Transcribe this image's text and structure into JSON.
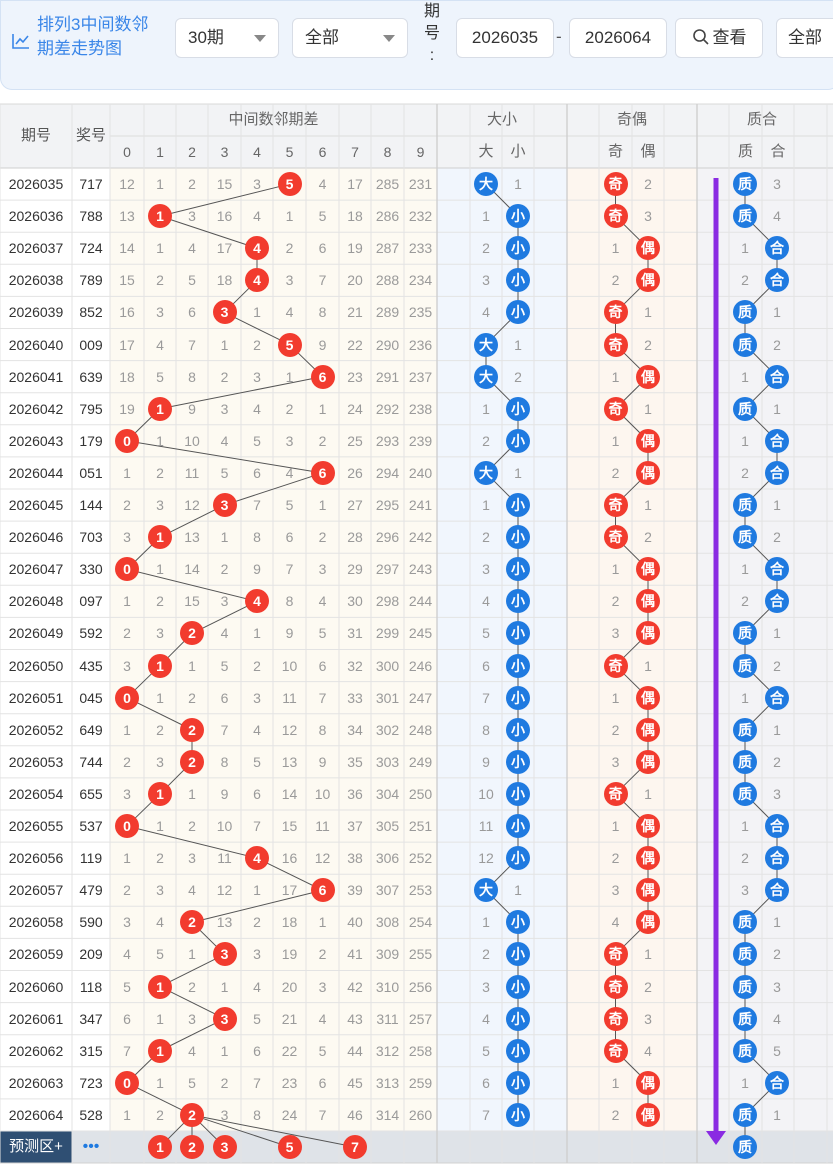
{
  "toolbar": {
    "title_line1": "排列3中间数邻",
    "title_line2": "期差走势图",
    "period_select": "30期",
    "type_select": "全部",
    "period_label": "期号:",
    "start_issue": "2026035",
    "range_dash": "-",
    "end_issue": "2026064",
    "view_button": "查看",
    "all_button": "全部",
    "chart_icon": "line-chart-icon",
    "search_icon": "search-icon"
  },
  "table": {
    "headers": {
      "issue": "期号",
      "number": "奖号",
      "gap_group": "中间数邻期差",
      "gap_cols": [
        "0",
        "1",
        "2",
        "3",
        "4",
        "5",
        "6",
        "7",
        "8",
        "9"
      ],
      "size_group": "大小",
      "size_cols": [
        "大",
        "小"
      ],
      "parity_group": "奇偶",
      "parity_cols": [
        "奇",
        "偶"
      ],
      "prime_group": "质合",
      "prime_cols": [
        "质",
        "合"
      ]
    },
    "rows": [
      {
        "issue": "2026035",
        "number": "717",
        "gap": [
          "12",
          "1",
          "2",
          "15",
          "3",
          "5",
          "4",
          "17",
          "285",
          "231"
        ],
        "hit": 5,
        "size": "大",
        "size_miss": "1",
        "par": "奇",
        "par_miss": "2",
        "prime": "质",
        "prime_miss": "3"
      },
      {
        "issue": "2026036",
        "number": "788",
        "gap": [
          "13",
          "1",
          "3",
          "16",
          "4",
          "1",
          "5",
          "18",
          "286",
          "232"
        ],
        "hit": 1,
        "size": "小",
        "size_miss": "1",
        "par": "奇",
        "par_miss": "3",
        "prime": "质",
        "prime_miss": "4"
      },
      {
        "issue": "2026037",
        "number": "724",
        "gap": [
          "14",
          "1",
          "4",
          "17",
          "4",
          "2",
          "6",
          "19",
          "287",
          "233"
        ],
        "hit": 4,
        "size": "小",
        "size_miss": "2",
        "par": "偶",
        "par_miss": "1",
        "prime": "合",
        "prime_miss": "1"
      },
      {
        "issue": "2026038",
        "number": "789",
        "gap": [
          "15",
          "2",
          "5",
          "18",
          "4",
          "3",
          "7",
          "20",
          "288",
          "234"
        ],
        "hit": 4,
        "size": "小",
        "size_miss": "3",
        "par": "偶",
        "par_miss": "2",
        "prime": "合",
        "prime_miss": "2"
      },
      {
        "issue": "2026039",
        "number": "852",
        "gap": [
          "16",
          "3",
          "6",
          "3",
          "1",
          "4",
          "8",
          "21",
          "289",
          "235"
        ],
        "hit": 3,
        "size": "小",
        "size_miss": "4",
        "par": "奇",
        "par_miss": "1",
        "prime": "质",
        "prime_miss": "1"
      },
      {
        "issue": "2026040",
        "number": "009",
        "gap": [
          "17",
          "4",
          "7",
          "1",
          "2",
          "5",
          "9",
          "22",
          "290",
          "236"
        ],
        "hit": 5,
        "size": "大",
        "size_miss": "1",
        "par": "奇",
        "par_miss": "2",
        "prime": "质",
        "prime_miss": "2"
      },
      {
        "issue": "2026041",
        "number": "639",
        "gap": [
          "18",
          "5",
          "8",
          "2",
          "3",
          "1",
          "6",
          "23",
          "291",
          "237"
        ],
        "hit": 6,
        "size": "大",
        "size_miss": "2",
        "par": "偶",
        "par_miss": "1",
        "prime": "合",
        "prime_miss": "1"
      },
      {
        "issue": "2026042",
        "number": "795",
        "gap": [
          "19",
          "1",
          "9",
          "3",
          "4",
          "2",
          "1",
          "24",
          "292",
          "238"
        ],
        "hit": 1,
        "size": "小",
        "size_miss": "1",
        "par": "奇",
        "par_miss": "1",
        "prime": "质",
        "prime_miss": "1"
      },
      {
        "issue": "2026043",
        "number": "179",
        "gap": [
          "0",
          "1",
          "10",
          "4",
          "5",
          "3",
          "2",
          "25",
          "293",
          "239"
        ],
        "hit": 0,
        "size": "小",
        "size_miss": "2",
        "par": "偶",
        "par_miss": "1",
        "prime": "合",
        "prime_miss": "1"
      },
      {
        "issue": "2026044",
        "number": "051",
        "gap": [
          "1",
          "2",
          "11",
          "5",
          "6",
          "4",
          "6",
          "26",
          "294",
          "240"
        ],
        "hit": 6,
        "size": "大",
        "size_miss": "1",
        "par": "偶",
        "par_miss": "2",
        "prime": "合",
        "prime_miss": "2"
      },
      {
        "issue": "2026045",
        "number": "144",
        "gap": [
          "2",
          "3",
          "12",
          "3",
          "7",
          "5",
          "1",
          "27",
          "295",
          "241"
        ],
        "hit": 3,
        "size": "小",
        "size_miss": "1",
        "par": "奇",
        "par_miss": "1",
        "prime": "质",
        "prime_miss": "1"
      },
      {
        "issue": "2026046",
        "number": "703",
        "gap": [
          "3",
          "1",
          "13",
          "1",
          "8",
          "6",
          "2",
          "28",
          "296",
          "242"
        ],
        "hit": 1,
        "size": "小",
        "size_miss": "2",
        "par": "奇",
        "par_miss": "2",
        "prime": "质",
        "prime_miss": "2"
      },
      {
        "issue": "2026047",
        "number": "330",
        "gap": [
          "0",
          "1",
          "14",
          "2",
          "9",
          "7",
          "3",
          "29",
          "297",
          "243"
        ],
        "hit": 0,
        "size": "小",
        "size_miss": "3",
        "par": "偶",
        "par_miss": "1",
        "prime": "合",
        "prime_miss": "1"
      },
      {
        "issue": "2026048",
        "number": "097",
        "gap": [
          "1",
          "2",
          "15",
          "3",
          "4",
          "8",
          "4",
          "30",
          "298",
          "244"
        ],
        "hit": 4,
        "size": "小",
        "size_miss": "4",
        "par": "偶",
        "par_miss": "2",
        "prime": "合",
        "prime_miss": "2"
      },
      {
        "issue": "2026049",
        "number": "592",
        "gap": [
          "2",
          "3",
          "2",
          "4",
          "1",
          "9",
          "5",
          "31",
          "299",
          "245"
        ],
        "hit": 2,
        "size": "小",
        "size_miss": "5",
        "par": "偶",
        "par_miss": "3",
        "prime": "质",
        "prime_miss": "1"
      },
      {
        "issue": "2026050",
        "number": "435",
        "gap": [
          "3",
          "1",
          "1",
          "5",
          "2",
          "10",
          "6",
          "32",
          "300",
          "246"
        ],
        "hit": 1,
        "size": "小",
        "size_miss": "6",
        "par": "奇",
        "par_miss": "1",
        "prime": "质",
        "prime_miss": "2"
      },
      {
        "issue": "2026051",
        "number": "045",
        "gap": [
          "0",
          "1",
          "2",
          "6",
          "3",
          "11",
          "7",
          "33",
          "301",
          "247"
        ],
        "hit": 0,
        "size": "小",
        "size_miss": "7",
        "par": "偶",
        "par_miss": "1",
        "prime": "合",
        "prime_miss": "1"
      },
      {
        "issue": "2026052",
        "number": "649",
        "gap": [
          "1",
          "2",
          "2",
          "7",
          "4",
          "12",
          "8",
          "34",
          "302",
          "248"
        ],
        "hit": 2,
        "size": "小",
        "size_miss": "8",
        "par": "偶",
        "par_miss": "2",
        "prime": "质",
        "prime_miss": "1"
      },
      {
        "issue": "2026053",
        "number": "744",
        "gap": [
          "2",
          "3",
          "2",
          "8",
          "5",
          "13",
          "9",
          "35",
          "303",
          "249"
        ],
        "hit": 2,
        "size": "小",
        "size_miss": "9",
        "par": "偶",
        "par_miss": "3",
        "prime": "质",
        "prime_miss": "2"
      },
      {
        "issue": "2026054",
        "number": "655",
        "gap": [
          "3",
          "1",
          "1",
          "9",
          "6",
          "14",
          "10",
          "36",
          "304",
          "250"
        ],
        "hit": 1,
        "size": "小",
        "size_miss": "10",
        "par": "奇",
        "par_miss": "1",
        "prime": "质",
        "prime_miss": "3"
      },
      {
        "issue": "2026055",
        "number": "537",
        "gap": [
          "0",
          "1",
          "2",
          "10",
          "7",
          "15",
          "11",
          "37",
          "305",
          "251"
        ],
        "hit": 0,
        "size": "小",
        "size_miss": "11",
        "par": "偶",
        "par_miss": "1",
        "prime": "合",
        "prime_miss": "1"
      },
      {
        "issue": "2026056",
        "number": "119",
        "gap": [
          "1",
          "2",
          "3",
          "11",
          "4",
          "16",
          "12",
          "38",
          "306",
          "252"
        ],
        "hit": 4,
        "size": "小",
        "size_miss": "12",
        "par": "偶",
        "par_miss": "2",
        "prime": "合",
        "prime_miss": "2"
      },
      {
        "issue": "2026057",
        "number": "479",
        "gap": [
          "2",
          "3",
          "4",
          "12",
          "1",
          "17",
          "6",
          "39",
          "307",
          "253"
        ],
        "hit": 6,
        "size": "大",
        "size_miss": "1",
        "par": "偶",
        "par_miss": "3",
        "prime": "合",
        "prime_miss": "3"
      },
      {
        "issue": "2026058",
        "number": "590",
        "gap": [
          "3",
          "4",
          "2",
          "13",
          "2",
          "18",
          "1",
          "40",
          "308",
          "254"
        ],
        "hit": 2,
        "size": "小",
        "size_miss": "1",
        "par": "偶",
        "par_miss": "4",
        "prime": "质",
        "prime_miss": "1"
      },
      {
        "issue": "2026059",
        "number": "209",
        "gap": [
          "4",
          "5",
          "1",
          "3",
          "3",
          "19",
          "2",
          "41",
          "309",
          "255"
        ],
        "hit": 3,
        "size": "小",
        "size_miss": "2",
        "par": "奇",
        "par_miss": "1",
        "prime": "质",
        "prime_miss": "2"
      },
      {
        "issue": "2026060",
        "number": "118",
        "gap": [
          "5",
          "1",
          "2",
          "1",
          "4",
          "20",
          "3",
          "42",
          "310",
          "256"
        ],
        "hit": 1,
        "size": "小",
        "size_miss": "3",
        "par": "奇",
        "par_miss": "2",
        "prime": "质",
        "prime_miss": "3"
      },
      {
        "issue": "2026061",
        "number": "347",
        "gap": [
          "6",
          "1",
          "3",
          "3",
          "5",
          "21",
          "4",
          "43",
          "311",
          "257"
        ],
        "hit": 3,
        "size": "小",
        "size_miss": "4",
        "par": "奇",
        "par_miss": "3",
        "prime": "质",
        "prime_miss": "4"
      },
      {
        "issue": "2026062",
        "number": "315",
        "gap": [
          "7",
          "1",
          "4",
          "1",
          "6",
          "22",
          "5",
          "44",
          "312",
          "258"
        ],
        "hit": 1,
        "size": "小",
        "size_miss": "5",
        "par": "奇",
        "par_miss": "4",
        "prime": "质",
        "prime_miss": "5"
      },
      {
        "issue": "2026063",
        "number": "723",
        "gap": [
          "0",
          "1",
          "5",
          "2",
          "7",
          "23",
          "6",
          "45",
          "313",
          "259"
        ],
        "hit": 0,
        "size": "小",
        "size_miss": "6",
        "par": "偶",
        "par_miss": "1",
        "prime": "合",
        "prime_miss": "1"
      },
      {
        "issue": "2026064",
        "number": "528",
        "gap": [
          "1",
          "2",
          "2",
          "3",
          "8",
          "24",
          "7",
          "46",
          "314",
          "260"
        ],
        "hit": 2,
        "size": "小",
        "size_miss": "7",
        "par": "偶",
        "par_miss": "2",
        "prime": "质",
        "prime_miss": "1"
      }
    ],
    "predict": {
      "label": "预测区+",
      "more": "•••",
      "balls": [
        "1",
        "2",
        "3",
        "5",
        "7"
      ],
      "ball_cols": [
        1,
        2,
        3,
        5,
        7
      ],
      "prime_ball": "质"
    }
  },
  "colors": {
    "red_ball": "#f23b2e",
    "blue_ball": "#1f7ae0",
    "trend_arrow": "#8a2be2",
    "title_blue": "#3a86e8",
    "predict_bar": "#2f4f73"
  }
}
